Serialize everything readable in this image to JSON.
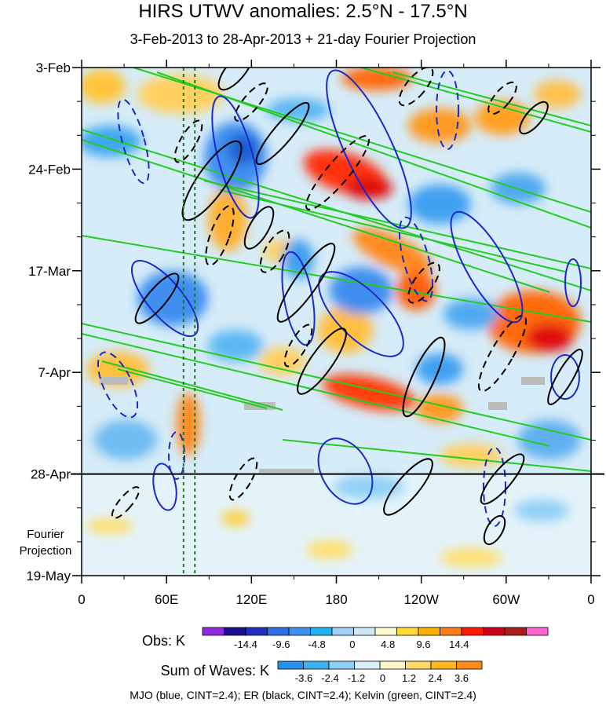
{
  "chart_data": {
    "type": "heatmap",
    "title": "HIRS UTWV anomalies: 2.5°N - 17.5°N",
    "subtitle": "3-Feb-2013 to 28-Apr-2013 + 21-day Fourier Projection",
    "x_tick_labels": [
      "0",
      "60E",
      "120E",
      "180",
      "120W",
      "60W",
      "0"
    ],
    "x_tick_lon": [
      0,
      60,
      120,
      180,
      240,
      300,
      360
    ],
    "y_tick_labels": [
      "3-Feb",
      "24-Feb",
      "17-Mar",
      "7-Apr",
      "28-Apr",
      "19-May"
    ],
    "y_tick_day": [
      0,
      21,
      42,
      63,
      84,
      105
    ],
    "observation_end_day": 84,
    "projection_label_line1": "Fourier",
    "projection_label_line2": "Projection",
    "reference_longitudes": [
      72,
      80
    ],
    "obs_legend": {
      "title": "Obs: K",
      "tick_labels": [
        "-14.4",
        "-9.6",
        "-4.8",
        "0",
        "4.8",
        "9.6",
        "14.4"
      ],
      "colors": [
        "#8e2be0",
        "#1a0f8c",
        "#1f2fbf",
        "#2f6de0",
        "#3f8ff0",
        "#20b4f0",
        "#9fd0f5",
        "#cfe8f8",
        "#fffbd0",
        "#ffd83a",
        "#ffb000",
        "#ff7a1a",
        "#ff1a00",
        "#d0001a",
        "#a81c1c",
        "#ff63cf"
      ]
    },
    "waves_legend": {
      "title": "Sum of Waves: K",
      "tick_labels": [
        "-3.6",
        "-2.4",
        "-1.2",
        "0",
        "1.2",
        "2.4",
        "3.6"
      ],
      "colors": [
        "#2a8fe8",
        "#3fb0f0",
        "#8fd0f5",
        "#d8eef8",
        "#fff6c8",
        "#ffd86a",
        "#ffb820",
        "#ff8a1a"
      ]
    },
    "contours": "MJO (blue, CINT=2.4); ER (black, CINT=2.4); Kelvin (green, CINT=2.4)"
  }
}
